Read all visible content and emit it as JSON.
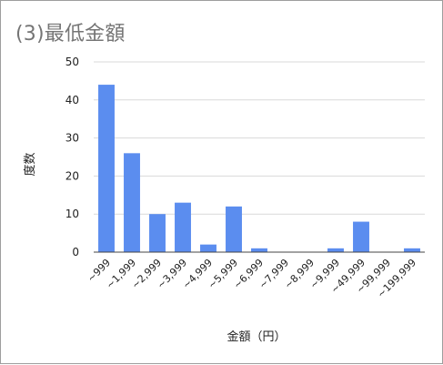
{
  "chart_data": {
    "type": "bar",
    "title": "(3)最低金額",
    "xlabel": "金額（円）",
    "ylabel": "度数",
    "categories": [
      "~999",
      "~1,999",
      "~2,999",
      "~3,999",
      "~4,999",
      "~5,999",
      "~6,999",
      "~7,999",
      "~8,999",
      "~9,999",
      "~49,999",
      "~99,999",
      "~199,999"
    ],
    "values": [
      44,
      26,
      10,
      13,
      2,
      12,
      1,
      0,
      0,
      1,
      8,
      0,
      1
    ],
    "ylim": [
      0,
      50
    ],
    "yticks": [
      0,
      10,
      20,
      30,
      40,
      50
    ],
    "grid": true,
    "legend": "none",
    "bar_color": "#5b8def",
    "grid_color": "#d9d9d9",
    "axis_color": "#444444"
  }
}
